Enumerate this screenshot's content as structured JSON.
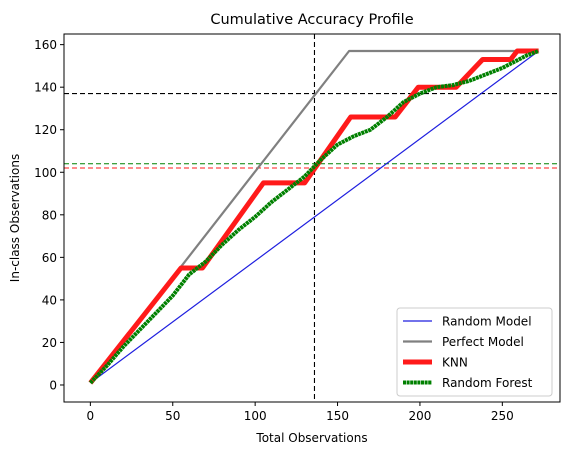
{
  "chart_data": {
    "type": "line",
    "title": "Cumulative Accuracy Profile",
    "xlabel": "Total Observations",
    "ylabel": "In-class Observations",
    "xlim": [
      -16,
      285
    ],
    "ylim": [
      -8,
      165
    ],
    "xticks": [
      0,
      50,
      100,
      150,
      200,
      250
    ],
    "yticks": [
      0,
      20,
      40,
      60,
      80,
      100,
      120,
      140,
      160
    ],
    "grid": false,
    "legend_position": "lower-right",
    "series": [
      {
        "name": "Random Model",
        "color": "#1f1fdf",
        "points": [
          [
            0,
            1
          ],
          [
            272,
            157
          ]
        ]
      },
      {
        "name": "Perfect Model",
        "color": "#808080",
        "points": [
          [
            0,
            1
          ],
          [
            157,
            157
          ],
          [
            272,
            157
          ]
        ]
      },
      {
        "name": "KNN",
        "color": "#ff1a1a",
        "points": [
          [
            0,
            1
          ],
          [
            55,
            55
          ],
          [
            68,
            55
          ],
          [
            105,
            95
          ],
          [
            130,
            95
          ],
          [
            158,
            126
          ],
          [
            185,
            126
          ],
          [
            199,
            140
          ],
          [
            222,
            140
          ],
          [
            238,
            153
          ],
          [
            255,
            153
          ],
          [
            259,
            157
          ],
          [
            272,
            157
          ]
        ]
      },
      {
        "name": "Random Forest",
        "color": "#008000",
        "points": [
          [
            0,
            1
          ],
          [
            10,
            9
          ],
          [
            20,
            18
          ],
          [
            30,
            26
          ],
          [
            40,
            34
          ],
          [
            50,
            42
          ],
          [
            60,
            52
          ],
          [
            70,
            58
          ],
          [
            80,
            66
          ],
          [
            90,
            73
          ],
          [
            100,
            79
          ],
          [
            110,
            86
          ],
          [
            120,
            92
          ],
          [
            130,
            98
          ],
          [
            140,
            106
          ],
          [
            150,
            113
          ],
          [
            160,
            117
          ],
          [
            170,
            120
          ],
          [
            180,
            126
          ],
          [
            190,
            133
          ],
          [
            200,
            137
          ],
          [
            210,
            140
          ],
          [
            220,
            141
          ],
          [
            230,
            143
          ],
          [
            240,
            146
          ],
          [
            250,
            149
          ],
          [
            260,
            153
          ],
          [
            265,
            155
          ],
          [
            272,
            157
          ]
        ]
      }
    ],
    "reference_lines": [
      {
        "orientation": "vertical",
        "value": 136,
        "color": "#000000",
        "style": "dashed"
      },
      {
        "orientation": "horizontal",
        "value": 137,
        "color": "#000000",
        "style": "dashed"
      },
      {
        "orientation": "horizontal",
        "value": 102,
        "color": "#ff1a1a",
        "style": "dashed"
      },
      {
        "orientation": "horizontal",
        "value": 104,
        "color": "#008000",
        "style": "dashed"
      }
    ]
  }
}
